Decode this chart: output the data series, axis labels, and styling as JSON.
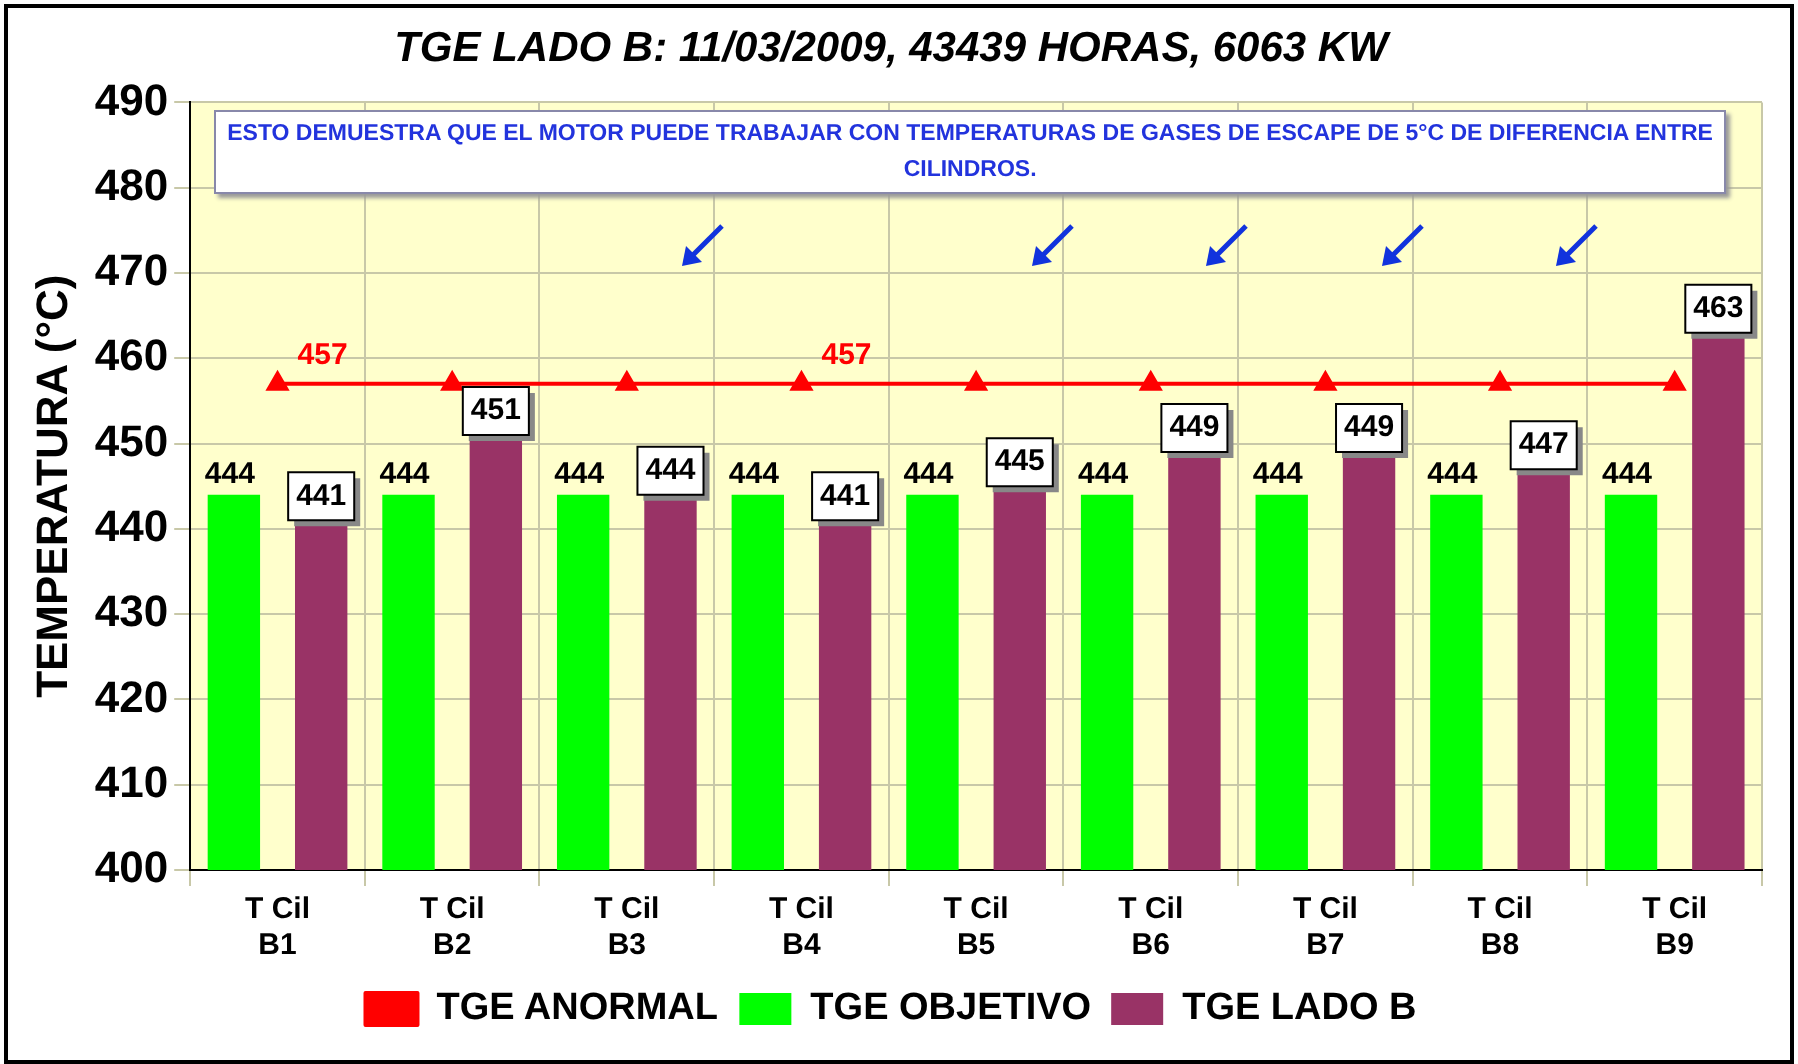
{
  "chart_data": {
    "type": "bar",
    "title": "TGE LADO B: 11/03/2009, 43439 HORAS, 6063 KW",
    "ylabel": "TEMPERATURA (°C)",
    "categories": [
      "T Cil B1",
      "T Cil B2",
      "T Cil B3",
      "T Cil B4",
      "T Cil B5",
      "T Cil B6",
      "T Cil B7",
      "T Cil B8",
      "T Cil B9"
    ],
    "series": [
      {
        "name": "TGE OBJETIVO",
        "color": "#00ff00",
        "values": [
          444,
          444,
          444,
          444,
          444,
          444,
          444,
          444,
          444
        ],
        "value_labels": [
          "444",
          "444",
          "444",
          "444",
          "444",
          "444",
          "444",
          "444",
          "444"
        ]
      },
      {
        "name": "TGE LADO B",
        "color": "#993366",
        "values": [
          441,
          451,
          444,
          441,
          445,
          449,
          449,
          447,
          463
        ],
        "value_labels": [
          "441",
          "451",
          "444",
          "441",
          "445",
          "449",
          "449",
          "447",
          "463"
        ]
      },
      {
        "name": "TGE ANORMAL",
        "type": "line",
        "color": "#ff0000",
        "values": [
          457,
          457,
          457,
          457,
          457,
          457,
          457,
          457,
          457
        ],
        "value_labels": [
          "457",
          null,
          null,
          "457",
          null,
          null,
          null,
          null,
          null
        ]
      }
    ],
    "ylim": [
      400,
      490
    ],
    "yticks": [
      400,
      410,
      420,
      430,
      440,
      450,
      460,
      470,
      480,
      490
    ],
    "grid": true,
    "legend": "bottom",
    "marker": "triangle",
    "line_style": "solid",
    "annotations": [
      "ESTO DEMUESTRA QUE EL MOTOR PUEDE TRABAJAR CON TEMPERATURAS DE GASES DE ESCAPE DE 5°C DE DIFERENCIA ENTRE CILINDROS."
    ]
  }
}
